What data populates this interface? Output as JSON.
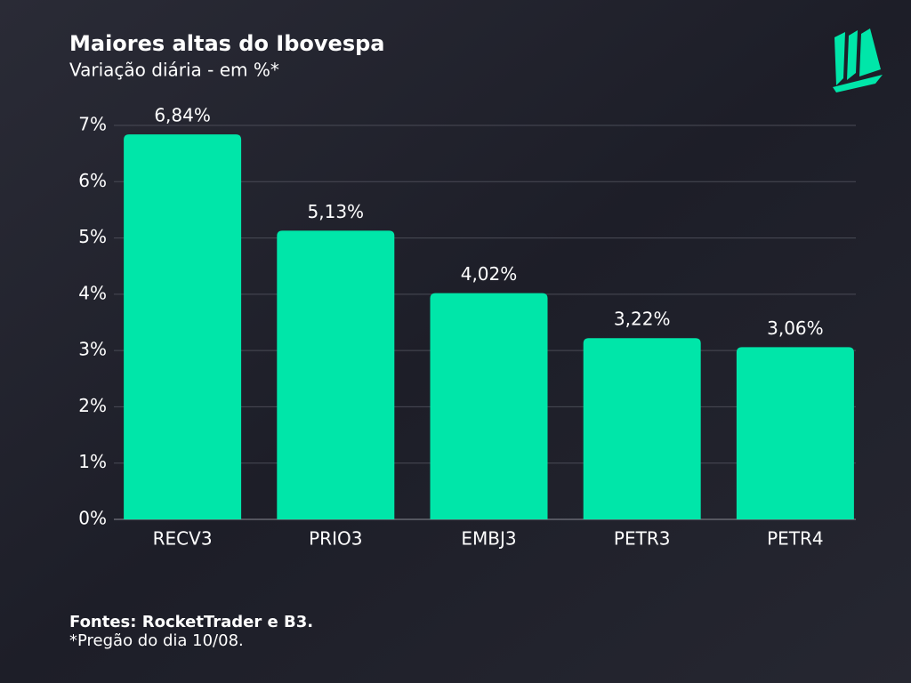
{
  "chart_data": {
    "type": "bar",
    "title": "Maiores altas do Ibovespa",
    "subtitle": "Variação diária - em %*",
    "categories": [
      "RECV3",
      "PRIO3",
      "EMBJ3",
      "PETR3",
      "PETR4"
    ],
    "values": [
      6.84,
      5.13,
      4.02,
      3.22,
      3.06
    ],
    "value_labels": [
      "6,84%",
      "5,13%",
      "4,02%",
      "3,22%",
      "3,06%"
    ],
    "color": "#00e6a9",
    "ylim": [
      0,
      7
    ],
    "yticks": [
      {
        "value": 0,
        "label": "0%"
      },
      {
        "value": 1,
        "label": "1%"
      },
      {
        "value": 2,
        "label": "2%"
      },
      {
        "value": 3,
        "label": "3%"
      },
      {
        "value": 4,
        "label": "4%"
      },
      {
        "value": 5,
        "label": "5%"
      },
      {
        "value": 6,
        "label": "6%"
      },
      {
        "value": 7,
        "label": "7%"
      }
    ],
    "grid": true
  },
  "footer": {
    "source": "Fontes: RocketTrader e B3.",
    "note": "*Pregão do dia 10/08."
  }
}
